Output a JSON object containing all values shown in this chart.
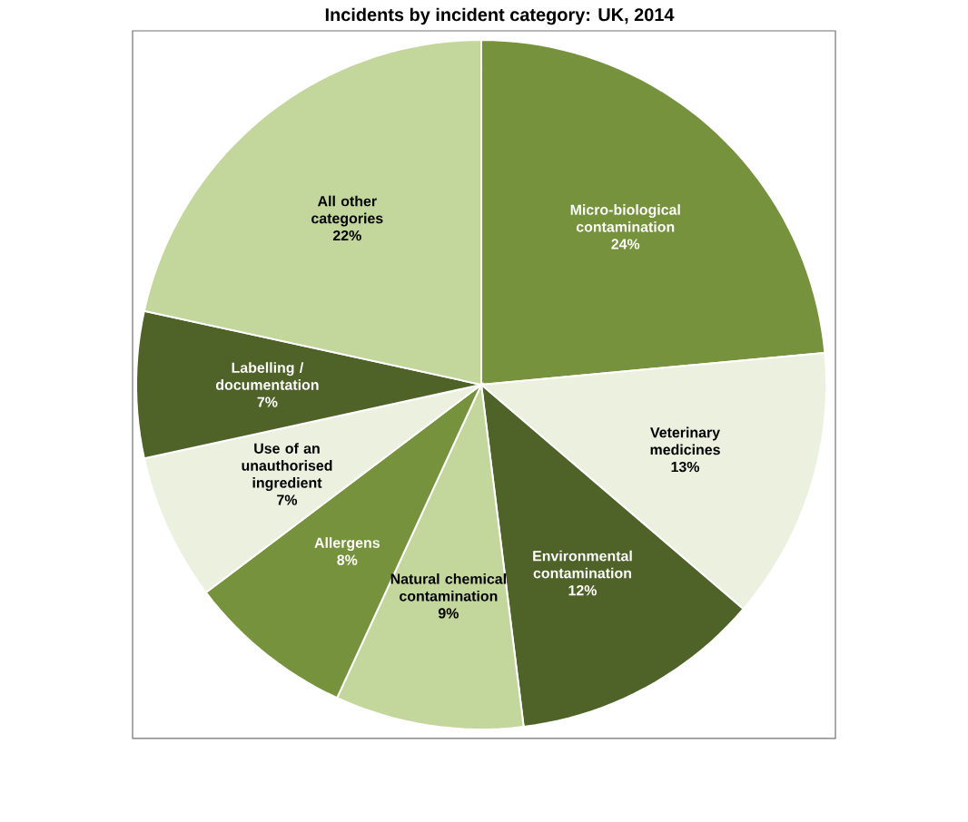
{
  "chart_data": {
    "type": "pie",
    "title": "Incidents by incident category: UK, 2014",
    "categories": [
      "Micro-biological contamination",
      "Veterinary medicines",
      "Environmental contamination",
      "Natural chemical contamination",
      "Allergens",
      "Use of an unauthorised ingredient",
      "Labelling / documentation",
      "All other categories"
    ],
    "values": [
      24,
      13,
      12,
      9,
      8,
      7,
      7,
      22
    ],
    "colors": [
      "#76923c",
      "#ebf1de",
      "#4f6228",
      "#c3d69b",
      "#76923c",
      "#ebf1de",
      "#4f6228",
      "#c3d69b"
    ],
    "value_labels": [
      "24%",
      "13%",
      "12%",
      "9%",
      "8%",
      "7%",
      "7%",
      "22%"
    ]
  }
}
